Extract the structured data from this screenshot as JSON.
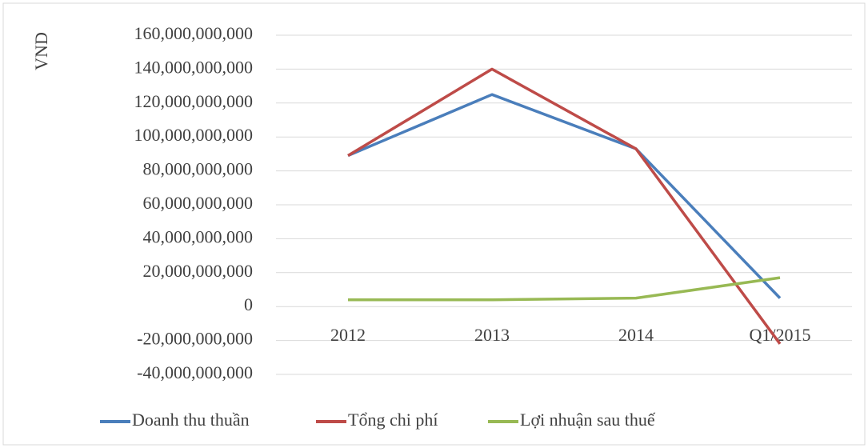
{
  "chart_data": {
    "type": "line",
    "y_label": "VND",
    "categories": [
      "2012",
      "2013",
      "2014",
      "Q1/2015"
    ],
    "series": [
      {
        "name": "Doanh thu thuần",
        "color": "#4a7ebb",
        "values": [
          89000000000,
          125000000000,
          93000000000,
          5000000000
        ]
      },
      {
        "name": "Tổng chi phí",
        "color": "#be4b48",
        "values": [
          89000000000,
          140000000000,
          93000000000,
          -22000000000
        ]
      },
      {
        "name": "Lợi nhuận sau thuế",
        "color": "#98b954",
        "values": [
          4000000000,
          4000000000,
          5000000000,
          17000000000
        ]
      }
    ],
    "ylim": [
      -40000000000,
      160000000000
    ],
    "yticks": [
      {
        "value": -40000000000,
        "label": "-40,000,000,000"
      },
      {
        "value": -20000000000,
        "label": "-20,000,000,000"
      },
      0,
      {
        "value": 20000000000,
        "label": "20,000,000,000"
      },
      {
        "value": 40000000000,
        "label": "40,000,000,000"
      },
      {
        "value": 60000000000,
        "label": "60,000,000,000"
      },
      {
        "value": 80000000000,
        "label": "80,000,000,000"
      },
      {
        "value": 100000000000,
        "label": "100,000,000,000"
      },
      {
        "value": 120000000000,
        "label": "120,000,000,000"
      },
      {
        "value": 140000000000,
        "label": "140,000,000,000"
      },
      {
        "value": 160000000000,
        "label": "160,000,000,000"
      }
    ],
    "grid": true,
    "legend": "bottom"
  }
}
